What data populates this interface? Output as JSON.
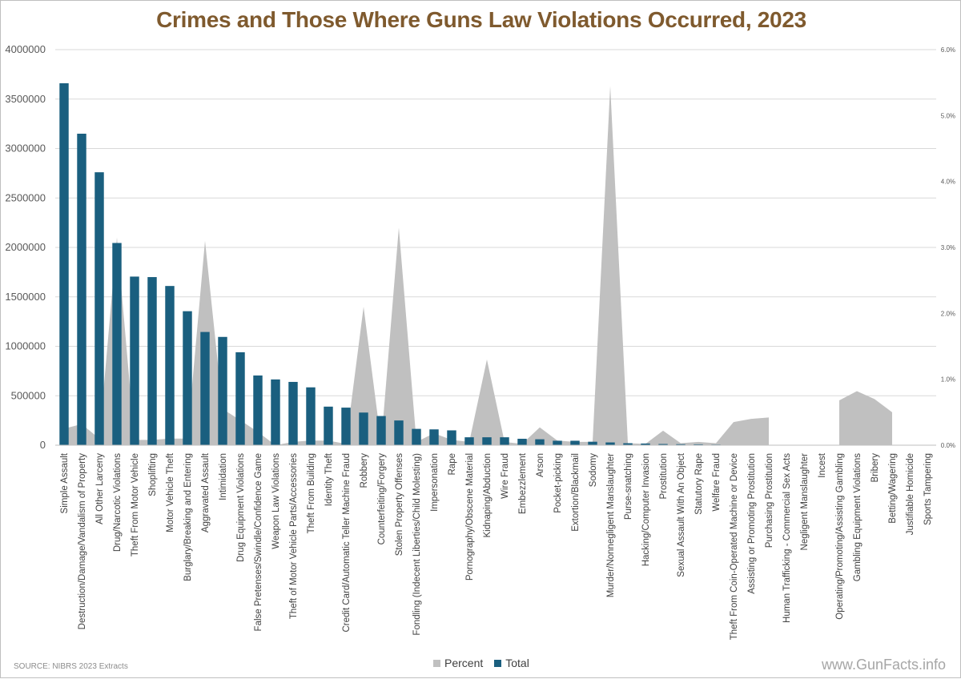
{
  "colors": {
    "title": "#7f5a2e",
    "total": "#1a5f7f",
    "percent": "#c0c0c0",
    "grid": "#d9d9d9",
    "axis_text": "#595959"
  },
  "chart_data": {
    "type": "bar",
    "title": "Crimes and Those Where Guns Law Violations Occurred, 2023",
    "xlabel": "",
    "ylabel": "",
    "ylim": [
      0,
      4000000
    ],
    "y_ticks": [
      "0",
      "500000",
      "1000000",
      "1500000",
      "2000000",
      "2500000",
      "3000000",
      "3500000",
      "4000000"
    ],
    "y2lim": [
      0,
      6.0
    ],
    "y2_ticks": [
      "0.0%",
      "1.0%",
      "2.0%",
      "3.0%",
      "4.0%",
      "5.0%",
      "6.0%"
    ],
    "grid": true,
    "legend_position": "bottom",
    "categories": [
      "Simple Assault",
      "Destruction/Damage/Vandalism of Property",
      "All Other Larceny",
      "Drug/Narcotic Violations",
      "Theft From Motor Vehicle",
      "Shoplifting",
      "Motor Vehicle Theft",
      "Burglary/Breaking and Entering",
      "Aggravated Assault",
      "Intimidation",
      "Drug Equipment Violations",
      "False Pretenses/Swindle/Confidence Game",
      "Weapon Law Violations",
      "Theft of Motor Vehicle Parts/Accessories",
      "Theft From Building",
      "Identity Theft",
      "Credit Card/Automatic Teller Machine Fraud",
      "Robbery",
      "Counterfeiting/Forgery",
      "Stolen Property Offenses",
      "Fondling (Indecent Liberties/Child Molesting)",
      "Impersonation",
      "Rape",
      "Pornography/Obscene Material",
      "Kidnaping/Abduction",
      "Wire Fraud",
      "Embezzlement",
      "Arson",
      "Pocket-picking",
      "Extortion/Blackmail",
      "Sodomy",
      "Murder/Nonnegligent Manslaughter",
      "Purse-snatching",
      "Hacking/Computer Invasion",
      "Prostitution",
      "Sexual Assault With An Object",
      "Statutory Rape",
      "Welfare Fraud",
      "Theft From Coin-Operated Machine or Device",
      "Assisting or Promoting Prostitution",
      "Purchasing Prostitution",
      "Human Trafficking - Commercial Sex Acts",
      "Negligent Manslaughter",
      "Incest",
      "Operating/Promoting/Assisting Gambling",
      "Gambling Equipment Violations",
      "Bribery",
      "Betting/Wagering",
      "Justifiable Homicide",
      "Sports Tampering"
    ],
    "series": [
      {
        "name": "Percent",
        "type": "area",
        "axis": "secondary",
        "unit": "%",
        "values": [
          0.25,
          0.32,
          0.1,
          3.15,
          0.08,
          0.08,
          0.1,
          0.1,
          3.1,
          0.55,
          0.38,
          0.2,
          0.0,
          0.05,
          0.07,
          0.07,
          0.02,
          2.1,
          0.03,
          3.3,
          0.05,
          0.18,
          0.08,
          0.05,
          1.3,
          0.05,
          0.02,
          0.27,
          0.07,
          0.05,
          0.05,
          5.45,
          0.03,
          0.02,
          0.22,
          0.03,
          0.05,
          0.03,
          0.35,
          0.4,
          0.42,
          null,
          null,
          null,
          0.68,
          0.82,
          0.7,
          0.5,
          null,
          null
        ]
      },
      {
        "name": "Total",
        "type": "bar",
        "axis": "primary",
        "values": [
          3660000,
          3150000,
          2760000,
          2045000,
          1705000,
          1700000,
          1610000,
          1355000,
          1145000,
          1095000,
          940000,
          705000,
          665000,
          640000,
          585000,
          390000,
          380000,
          330000,
          295000,
          250000,
          165000,
          160000,
          150000,
          80000,
          80000,
          80000,
          65000,
          60000,
          45000,
          45000,
          35000,
          28000,
          20000,
          17000,
          12000,
          10000,
          9000,
          6000,
          4000,
          3000,
          2000,
          1500,
          1200,
          1000,
          1000,
          800,
          600,
          500,
          300,
          50
        ]
      }
    ]
  },
  "legend": {
    "items": [
      {
        "label": "Percent",
        "color": "#c0c0c0"
      },
      {
        "label": "Total",
        "color": "#1a5f7f"
      }
    ]
  },
  "footer": {
    "source": "SOURCE: NIBRS 2023 Extracts",
    "watermark": "www.GunFacts.info"
  }
}
